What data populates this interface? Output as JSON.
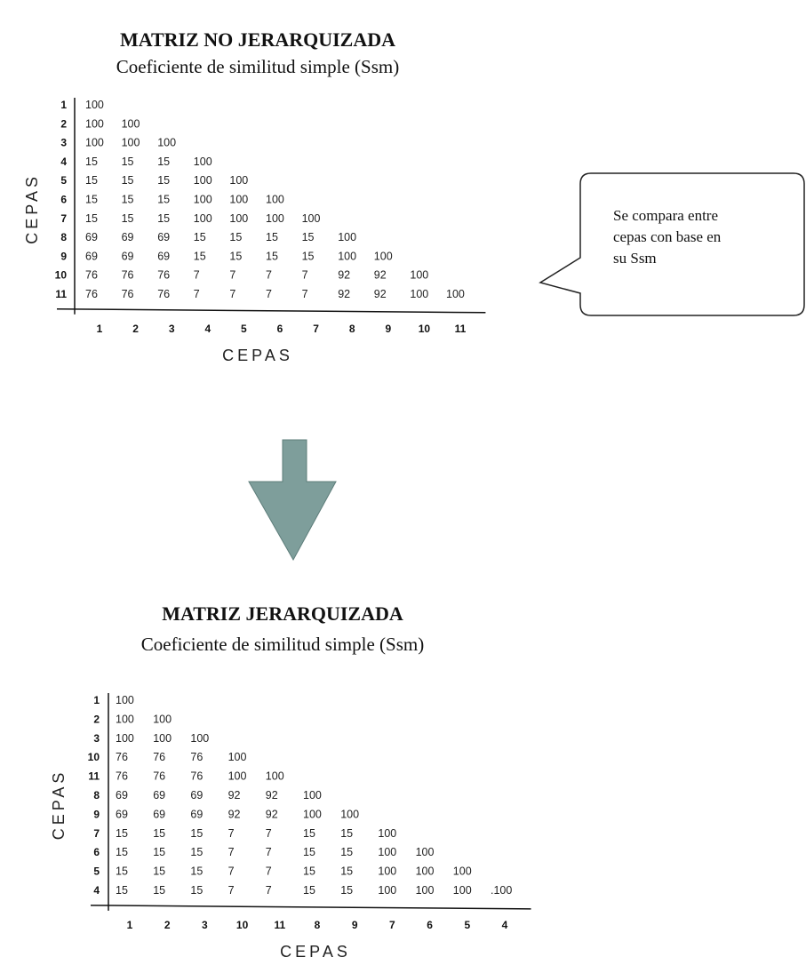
{
  "matrices": [
    {
      "title": "MATRIZ NO JERARQUIZADA",
      "subtitle": "Coeficiente de similitud simple (Ssm)",
      "y_axis_label": "CEPAS",
      "x_axis_label": "CEPAS",
      "row_labels": [
        "1",
        "2",
        "3",
        "4",
        "5",
        "6",
        "7",
        "8",
        "9",
        "10",
        "11"
      ],
      "col_labels": [
        "1",
        "2",
        "3",
        "4",
        "5",
        "6",
        "7",
        "8",
        "9",
        "10",
        "11"
      ],
      "rows": [
        [
          "100"
        ],
        [
          "100",
          "100"
        ],
        [
          "100",
          "100",
          "100"
        ],
        [
          "15",
          "15",
          "15",
          "100"
        ],
        [
          "15",
          "15",
          "15",
          "100",
          "100"
        ],
        [
          "15",
          "15",
          "15",
          "100",
          "100",
          "100"
        ],
        [
          "15",
          "15",
          "15",
          "100",
          "100",
          "100",
          "100"
        ],
        [
          "69",
          "69",
          "69",
          "15",
          "15",
          "15",
          "15",
          "100"
        ],
        [
          "69",
          "69",
          "69",
          "15",
          "15",
          "15",
          "15",
          "100",
          "100"
        ],
        [
          "76",
          "76",
          "76",
          "7",
          "7",
          "7",
          "7",
          "92",
          "92",
          "100"
        ],
        [
          "76",
          "76",
          "76",
          "7",
          "7",
          "7",
          "7",
          "92",
          "92",
          "100",
          "100"
        ]
      ]
    },
    {
      "title": "MATRIZ JERARQUIZADA",
      "subtitle": "Coeficiente de similitud simple (Ssm)",
      "y_axis_label": "CEPAS",
      "x_axis_label": "CEPAS",
      "row_labels": [
        "1",
        "2",
        "3",
        "10",
        "11",
        "8",
        "9",
        "7",
        "6",
        "5",
        "4"
      ],
      "col_labels": [
        "1",
        "2",
        "3",
        "10",
        "11",
        "8",
        "9",
        "7",
        "6",
        "5",
        "4"
      ],
      "rows": [
        [
          "100"
        ],
        [
          "100",
          "100"
        ],
        [
          "100",
          "100",
          "100"
        ],
        [
          "76",
          "76",
          "76",
          "100"
        ],
        [
          "76",
          "76",
          "76",
          "100",
          "100"
        ],
        [
          "69",
          "69",
          "69",
          "92",
          "92",
          "100"
        ],
        [
          "69",
          "69",
          "69",
          "92",
          "92",
          "100",
          "100"
        ],
        [
          "15",
          "15",
          "15",
          "7",
          "7",
          "15",
          "15",
          "100"
        ],
        [
          "15",
          "15",
          "15",
          "7",
          "7",
          "15",
          "15",
          "100",
          "100"
        ],
        [
          "15",
          "15",
          "15",
          "7",
          "7",
          "15",
          "15",
          "100",
          "100",
          "100"
        ],
        [
          "15",
          "15",
          "15",
          "7",
          "7",
          "15",
          "15",
          "100",
          "100",
          "100",
          ".100"
        ]
      ]
    }
  ],
  "callout": [
    "Se compara entre",
    "cepas con base en",
    "su Ssm"
  ]
}
